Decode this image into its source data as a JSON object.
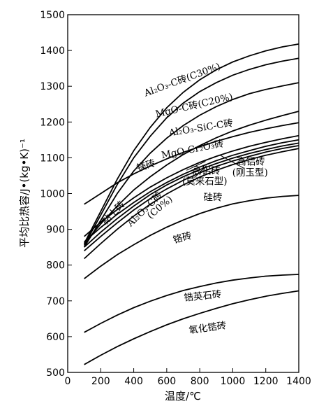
{
  "chart_data": {
    "type": "line",
    "xlabel": "温度/℃",
    "ylabel": "平均比热容/J•(kg•K)⁻¹",
    "xlim": [
      0,
      1400
    ],
    "ylim": [
      500,
      1500
    ],
    "xticks": [
      0,
      200,
      400,
      600,
      800,
      1000,
      1200,
      1400
    ],
    "yticks": [
      500,
      600,
      700,
      800,
      900,
      1000,
      1100,
      1200,
      1300,
      1400,
      1500
    ],
    "grid": false,
    "legend": "none",
    "x": [
      100,
      200,
      300,
      400,
      500,
      600,
      700,
      800,
      900,
      1000,
      1100,
      1200,
      1300,
      1400
    ],
    "series": [
      {
        "name": "Al₂O₃-C砖(C30%)",
        "values": [
          860,
          950,
          1040,
          1120,
          1185,
          1240,
          1283,
          1318,
          1346,
          1368,
          1385,
          1399,
          1410,
          1418
        ]
      },
      {
        "name": "MgO-C砖(C20%)",
        "values": [
          855,
          940,
          1025,
          1100,
          1160,
          1212,
          1253,
          1285,
          1310,
          1331,
          1347,
          1360,
          1370,
          1378
        ]
      },
      {
        "name": "Al₂O₃-SiC-C砖",
        "values": [
          850,
          925,
          1000,
          1063,
          1113,
          1155,
          1190,
          1219,
          1243,
          1263,
          1279,
          1291,
          1301,
          1310
        ]
      },
      {
        "name": "MgO-Cr₂O₃砖",
        "values": [
          860,
          915,
          965,
          1010,
          1047,
          1080,
          1109,
          1134,
          1156,
          1175,
          1191,
          1205,
          1218,
          1230
        ]
      },
      {
        "name": "镁砖",
        "values": [
          970,
          1000,
          1030,
          1055,
          1077,
          1097,
          1115,
          1131,
          1146,
          1159,
          1171,
          1181,
          1190,
          1198
        ]
      },
      {
        "name": "高铝砖(刚玉型)",
        "values": [
          880,
          920,
          955,
          988,
          1018,
          1044,
          1067,
          1087,
          1104,
          1119,
          1132,
          1143,
          1153,
          1162
        ]
      },
      {
        "name": "高铝砖(莫来石型)",
        "values": [
          865,
          905,
          942,
          975,
          1005,
          1031,
          1054,
          1074,
          1092,
          1107,
          1120,
          1132,
          1142,
          1150
        ]
      },
      {
        "name": "Al₂O₃-C砖(C0%)",
        "values": [
          850,
          892,
          930,
          965,
          997,
          1024,
          1047,
          1067,
          1084,
          1099,
          1112,
          1123,
          1133,
          1141
        ]
      },
      {
        "name": "黏土砖",
        "values": [
          840,
          880,
          918,
          954,
          986,
          1013,
          1037,
          1058,
          1076,
          1091,
          1104,
          1116,
          1126,
          1134
        ]
      },
      {
        "name": "硅砖",
        "values": [
          818,
          860,
          900,
          937,
          970,
          999,
          1024,
          1046,
          1065,
          1081,
          1095,
          1107,
          1117,
          1126
        ]
      },
      {
        "name": "铬砖",
        "values": [
          762,
          797,
          829,
          857,
          883,
          906,
          926,
          944,
          959,
          971,
          980,
          987,
          992,
          995
        ]
      },
      {
        "name": "锆英石砖",
        "values": [
          612,
          637,
          660,
          681,
          699,
          715,
          729,
          740,
          750,
          758,
          764,
          769,
          772,
          774
        ]
      },
      {
        "name": "氧化锆砖",
        "values": [
          522,
          548,
          572,
          594,
          614,
          633,
          650,
          665,
          679,
          692,
          703,
          713,
          721,
          728
        ]
      }
    ],
    "annotations": [
      {
        "text": "Al₂O₃-C砖(C30%)",
        "x": 700,
        "y": 1310,
        "rotate": -20
      },
      {
        "text": "MgO-C砖(C20%)",
        "x": 770,
        "y": 1238,
        "rotate": -13
      },
      {
        "text": "Al₂O₃-SiC-C砖",
        "x": 810,
        "y": 1175,
        "rotate": -9
      },
      {
        "text": "MgO-Cr₂O₃砖",
        "x": 760,
        "y": 1115,
        "rotate": -11
      },
      {
        "text": "镁砖",
        "x": 480,
        "y": 1070,
        "rotate": -18
      },
      {
        "text": "高铝砖",
        "x": 1110,
        "y": 1080,
        "rotate": 0
      },
      {
        "text": "(刚玉型)",
        "x": 1105,
        "y": 1050,
        "rotate": 0
      },
      {
        "text": "高铝砖",
        "x": 840,
        "y": 1055,
        "rotate": 0
      },
      {
        "text": "(莫来石型)",
        "x": 830,
        "y": 1025,
        "rotate": 0
      },
      {
        "text": "Al₂O₃-C砖",
        "x": 480,
        "y": 950,
        "rotate": -44
      },
      {
        "text": "(C0%)",
        "x": 570,
        "y": 955,
        "rotate": -40
      },
      {
        "text": "硅砖",
        "x": 880,
        "y": 980,
        "rotate": 0
      },
      {
        "text": "黏土砖",
        "x": 290,
        "y": 940,
        "rotate": -46
      },
      {
        "text": "铬砖",
        "x": 700,
        "y": 868,
        "rotate": -16
      },
      {
        "text": "锆英石砖",
        "x": 820,
        "y": 705,
        "rotate": -6
      },
      {
        "text": "氧化锆砖",
        "x": 850,
        "y": 616,
        "rotate": -8
      }
    ],
    "leaders": [
      {
        "from": [
          1070,
          1070
        ],
        "to": [
          920,
          1108
        ]
      },
      {
        "from": [
          770,
          1045
        ],
        "to": [
          840,
          1078
        ]
      },
      {
        "from": [
          720,
          1065
        ],
        "to": [
          835,
          1090
        ]
      }
    ]
  }
}
